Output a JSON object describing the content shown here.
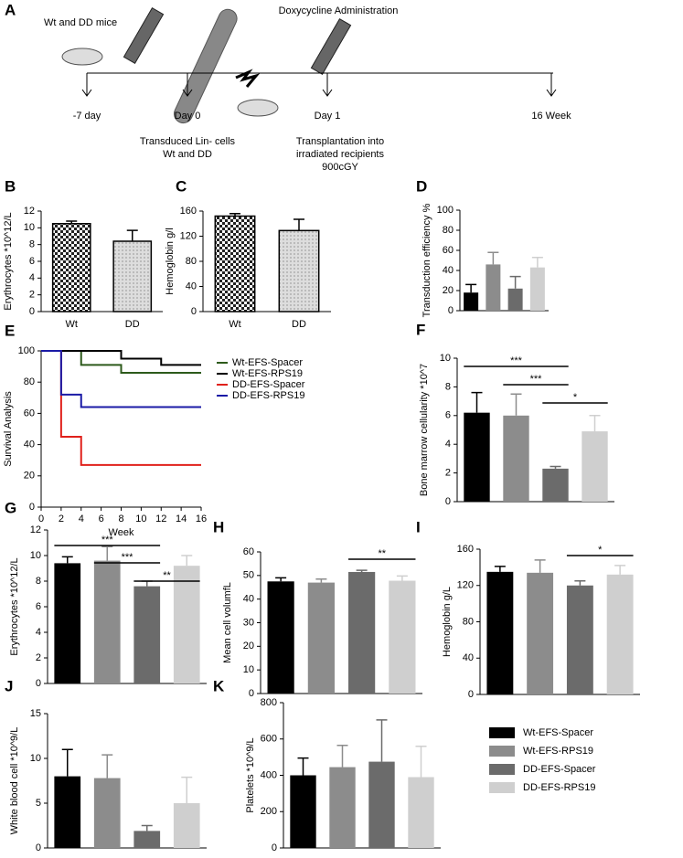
{
  "timeline": {
    "panel": "A",
    "mice": "Wt and DD mice",
    "treatment": "Doxycycline Administration",
    "points": [
      "-7 day",
      "Day 0",
      "Day 1",
      "16 Week"
    ],
    "transduction": [
      "Transduced Lin- cells",
      "Wt and DD"
    ],
    "transplant": [
      "Transplantation into",
      "irradiated recipients",
      "900cGY"
    ]
  },
  "chart_data": [
    {
      "panel": "B",
      "type": "bar",
      "ylabel": "Erythrocytes *10^12/L",
      "categories": [
        "Wt",
        "DD"
      ],
      "values": [
        10.5,
        8.4
      ],
      "errors": [
        0.3,
        1.3
      ],
      "colors": [
        "#000000",
        "#999999"
      ],
      "patterns": [
        "checker",
        "dots"
      ],
      "ylim": [
        0,
        12
      ],
      "yticks": [
        0,
        2,
        4,
        6,
        8,
        10,
        12
      ]
    },
    {
      "panel": "C",
      "type": "bar",
      "ylabel": "Hemoglobin g/l",
      "categories": [
        "Wt",
        "DD"
      ],
      "values": [
        152,
        129
      ],
      "errors": [
        4,
        18
      ],
      "colors": [
        "#000000",
        "#999999"
      ],
      "patterns": [
        "checker",
        "dots"
      ],
      "ylim": [
        0,
        160
      ],
      "yticks": [
        0,
        40,
        80,
        120,
        160
      ]
    },
    {
      "panel": "D",
      "type": "bar",
      "ylabel": "Transduction efficiency %",
      "categories": [
        null,
        null,
        null,
        null
      ],
      "values": [
        18,
        46,
        22,
        43
      ],
      "errors": [
        8,
        12,
        12,
        10
      ],
      "colors": [
        "#000000",
        "#8c8c8c",
        "#6b6b6b",
        "#cfcfcf"
      ],
      "ylim": [
        0,
        100
      ],
      "yticks": [
        0,
        20,
        40,
        60,
        80,
        100
      ]
    },
    {
      "panel": "E",
      "type": "line",
      "xlabel": "Week",
      "ylabel": "Survival Analysis",
      "xlim": [
        0,
        16
      ],
      "xticks": [
        0,
        2,
        4,
        6,
        8,
        10,
        12,
        14,
        16
      ],
      "ylim": [
        0,
        100
      ],
      "yticks": [
        0,
        20,
        40,
        60,
        80,
        100
      ],
      "series": [
        {
          "name": "Wt-EFS-Spacer",
          "color": "#2d5a1b",
          "x": [
            0,
            4,
            4,
            8,
            8,
            16
          ],
          "values": [
            100,
            100,
            91,
            91,
            86,
            86
          ]
        },
        {
          "name": "Wt-EFS-RPS19",
          "color": "#000000",
          "x": [
            0,
            8,
            8,
            12,
            12,
            16
          ],
          "values": [
            100,
            100,
            95,
            95,
            91,
            91
          ]
        },
        {
          "name": "DD-EFS-Spacer",
          "color": "#e0201b",
          "x": [
            0,
            2,
            2,
            4,
            4,
            16
          ],
          "values": [
            100,
            100,
            45,
            45,
            27,
            27
          ]
        },
        {
          "name": "DD-EFS-RPS19",
          "color": "#1a1aa6",
          "x": [
            0,
            2,
            2,
            4,
            4,
            16
          ],
          "values": [
            100,
            100,
            72,
            72,
            64,
            64
          ]
        }
      ]
    },
    {
      "panel": "F",
      "type": "bar",
      "ylabel": "Bone marrow cellularity  *10^7",
      "categories": [
        null,
        null,
        null,
        null
      ],
      "values": [
        6.2,
        6.0,
        2.3,
        4.9
      ],
      "errors": [
        1.4,
        1.5,
        0.15,
        1.1
      ],
      "colors": [
        "#000000",
        "#8c8c8c",
        "#6b6b6b",
        "#cfcfcf"
      ],
      "ylim": [
        0,
        10
      ],
      "yticks": [
        0,
        2,
        4,
        6,
        8,
        10
      ],
      "annotations": [
        "***",
        "***",
        "*"
      ]
    },
    {
      "panel": "G",
      "type": "bar",
      "ylabel": "Erythrocytes *10^12/L",
      "categories": [
        null,
        null,
        null,
        null
      ],
      "values": [
        9.4,
        9.6,
        7.6,
        9.2
      ],
      "errors": [
        0.5,
        1.1,
        0.4,
        0.8
      ],
      "colors": [
        "#000000",
        "#8c8c8c",
        "#6b6b6b",
        "#cfcfcf"
      ],
      "ylim": [
        0,
        12
      ],
      "yticks": [
        0,
        2,
        4,
        6,
        8,
        10,
        12
      ],
      "annotations": [
        "***",
        "***",
        "**"
      ]
    },
    {
      "panel": "H",
      "type": "bar",
      "ylabel": "Mean cell volumfL",
      "categories": [
        null,
        null,
        null,
        null
      ],
      "values": [
        47.5,
        47,
        51.5,
        47.8
      ],
      "errors": [
        1.5,
        1.5,
        0.7,
        2
      ],
      "colors": [
        "#000000",
        "#8c8c8c",
        "#6b6b6b",
        "#cfcfcf"
      ],
      "ylim": [
        0,
        60
      ],
      "yticks": [
        0,
        10,
        20,
        30,
        40,
        50,
        60
      ],
      "annotations": [
        "**"
      ]
    },
    {
      "panel": "I",
      "type": "bar",
      "ylabel": "Hemoglobin g/L",
      "categories": [
        null,
        null,
        null,
        null
      ],
      "values": [
        135,
        134,
        120,
        132
      ],
      "errors": [
        6,
        14,
        5,
        10
      ],
      "colors": [
        "#000000",
        "#8c8c8c",
        "#6b6b6b",
        "#cfcfcf"
      ],
      "ylim": [
        0,
        160
      ],
      "yticks": [
        0,
        40,
        80,
        120,
        160
      ],
      "annotations": [
        "*"
      ]
    },
    {
      "panel": "J",
      "type": "bar",
      "ylabel": "White blood cell  *10^9/L",
      "categories": [
        null,
        null,
        null,
        null
      ],
      "values": [
        8,
        7.8,
        1.9,
        5
      ],
      "errors": [
        3,
        2.6,
        0.6,
        2.9
      ],
      "colors": [
        "#000000",
        "#8c8c8c",
        "#6b6b6b",
        "#cfcfcf"
      ],
      "ylim": [
        0,
        15
      ],
      "yticks": [
        0,
        5,
        10,
        15
      ]
    },
    {
      "panel": "K",
      "type": "bar",
      "ylabel": "Platelets *10^9/L",
      "categories": [
        null,
        null,
        null,
        null
      ],
      "values": [
        400,
        445,
        475,
        390
      ],
      "errors": [
        95,
        120,
        230,
        170
      ],
      "colors": [
        "#000000",
        "#8c8c8c",
        "#6b6b6b",
        "#cfcfcf"
      ],
      "ylim": [
        0,
        800
      ],
      "yticks": [
        0,
        200,
        400,
        600,
        800
      ]
    }
  ],
  "legend": [
    {
      "name": "Wt-EFS-Spacer",
      "color": "#000000"
    },
    {
      "name": "Wt-EFS-RPS19",
      "color": "#8c8c8c"
    },
    {
      "name": "DD-EFS-Spacer",
      "color": "#6b6b6b"
    },
    {
      "name": "DD-EFS-RPS19",
      "color": "#cfcfcf"
    }
  ]
}
